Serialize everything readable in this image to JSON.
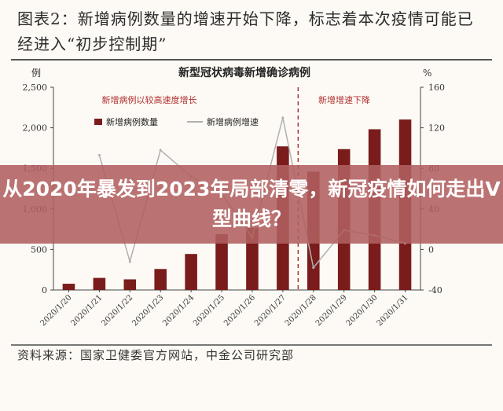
{
  "figure": {
    "title": "图表2：新增病例数量的增速开始下降，标志着本次疫情可能已经进入“初步控制期”",
    "source": "资料来源：国家卫健委官方网站，中金公司研究部"
  },
  "overlay": {
    "headline": "从2020年暴发到2023年局部清零，新冠疫情如何走出V型曲线？"
  },
  "chart_data": {
    "type": "bar+line",
    "title": "新型冠状病毒新增确诊病例",
    "ylabel": "例",
    "y2label": "%",
    "categories": [
      "2020/1/20",
      "2020/1/21",
      "2020/1/22",
      "2020/1/23",
      "2020/1/24",
      "2020/1/25",
      "2020/1/26",
      "2020/1/27",
      "2020/1/28",
      "2020/1/29",
      "2020/1/30",
      "2020/1/31"
    ],
    "ylim": [
      0,
      2500
    ],
    "yticks": [
      "0",
      "500",
      "1,000",
      "1,500",
      "2,000",
      "2,500"
    ],
    "y2lim": [
      -40,
      160
    ],
    "y2ticks": [
      "-40",
      "0",
      "40",
      "80",
      "120",
      "160"
    ],
    "series": [
      {
        "name": "新增病例数量",
        "kind": "bar",
        "axis": "left",
        "color": "#7a1c1c",
        "values": [
          77,
          149,
          131,
          259,
          444,
          688,
          769,
          1771,
          1459,
          1737,
          1982,
          2102
        ]
      },
      {
        "name": "新增病例增速",
        "kind": "line",
        "axis": "right",
        "color": "#b0b0b0",
        "values": [
          null,
          93,
          -12,
          98,
          72,
          55,
          12,
          130,
          -18,
          19,
          14,
          6
        ]
      }
    ],
    "annotations": [
      {
        "text": "新增病例以较高速度增长"
      },
      {
        "text": "新增增速下降"
      }
    ],
    "divider_after_index": 7,
    "legend": "top-left",
    "grid": false
  }
}
